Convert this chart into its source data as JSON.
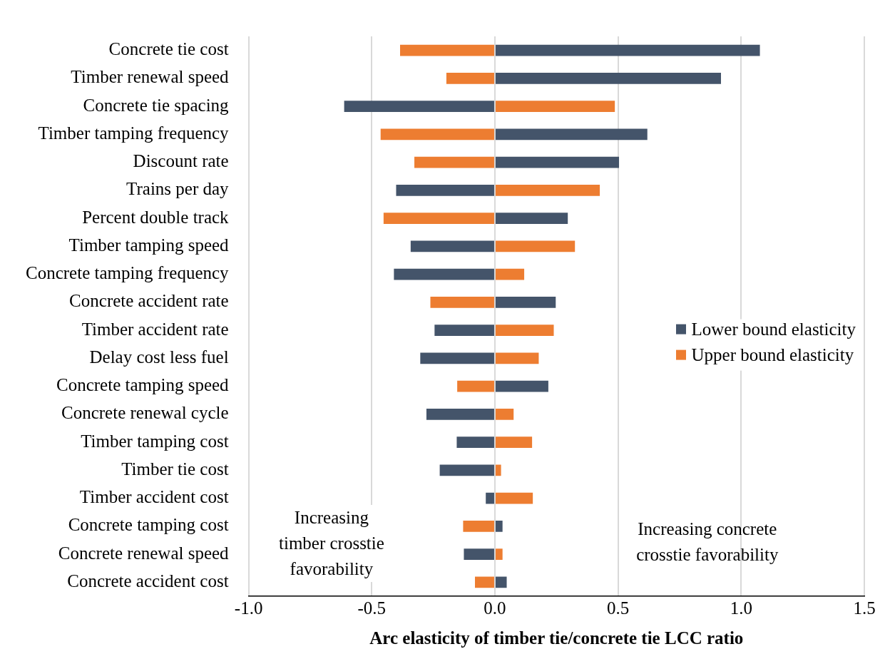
{
  "chart_data": {
    "type": "bar",
    "orientation": "horizontal",
    "stacked": true,
    "xlabel": "Arc elasticity of timber tie/concrete tie LCC ratio",
    "categories": [
      "Concrete tie cost",
      "Timber renewal speed",
      "Concrete tie spacing",
      "Timber tamping frequency",
      "Discount rate",
      "Trains per day",
      "Percent double track",
      "Timber tamping speed",
      "Concrete tamping frequency",
      "Concrete accident rate",
      "Timber accident rate",
      "Delay cost less fuel",
      "Concrete tamping speed",
      "Concrete renewal cycle",
      "Timber tamping cost",
      "Timber tie cost",
      "Timber accident cost",
      "Concrete tamping cost",
      "Concrete renewal speed",
      "Concrete accident cost"
    ],
    "series": [
      {
        "name": "Lower bound elasticity",
        "color": "#44546a",
        "values": [
          1.076,
          0.918,
          -0.612,
          0.619,
          0.504,
          -0.401,
          0.296,
          -0.342,
          -0.41,
          0.247,
          -0.245,
          -0.303,
          0.217,
          -0.278,
          -0.155,
          -0.224,
          -0.037,
          0.031,
          -0.126,
          0.048
        ]
      },
      {
        "name": "Upper bound elasticity",
        "color": "#ed7d31",
        "values": [
          -0.385,
          -0.197,
          0.487,
          -0.464,
          -0.327,
          0.426,
          -0.452,
          0.325,
          0.119,
          -0.262,
          0.239,
          0.178,
          -0.153,
          0.076,
          0.151,
          0.025,
          0.154,
          -0.129,
          0.031,
          -0.081
        ]
      }
    ],
    "xlim": [
      -1.0,
      1.5
    ],
    "xticks": [
      {
        "value": -1,
        "label": "-1.0"
      },
      {
        "value": -0.5,
        "label": "-0.5"
      },
      {
        "value": 0,
        "label": "0.0"
      },
      {
        "value": 0.5,
        "label": "0.5"
      },
      {
        "value": 1,
        "label": "1.0"
      },
      {
        "value": 1.5,
        "label": "1.5"
      }
    ],
    "grid": "x",
    "legend": "right",
    "annotations": [
      "Increasing timber crosstie favorability",
      "Increasing concrete crosstie favorability"
    ]
  }
}
